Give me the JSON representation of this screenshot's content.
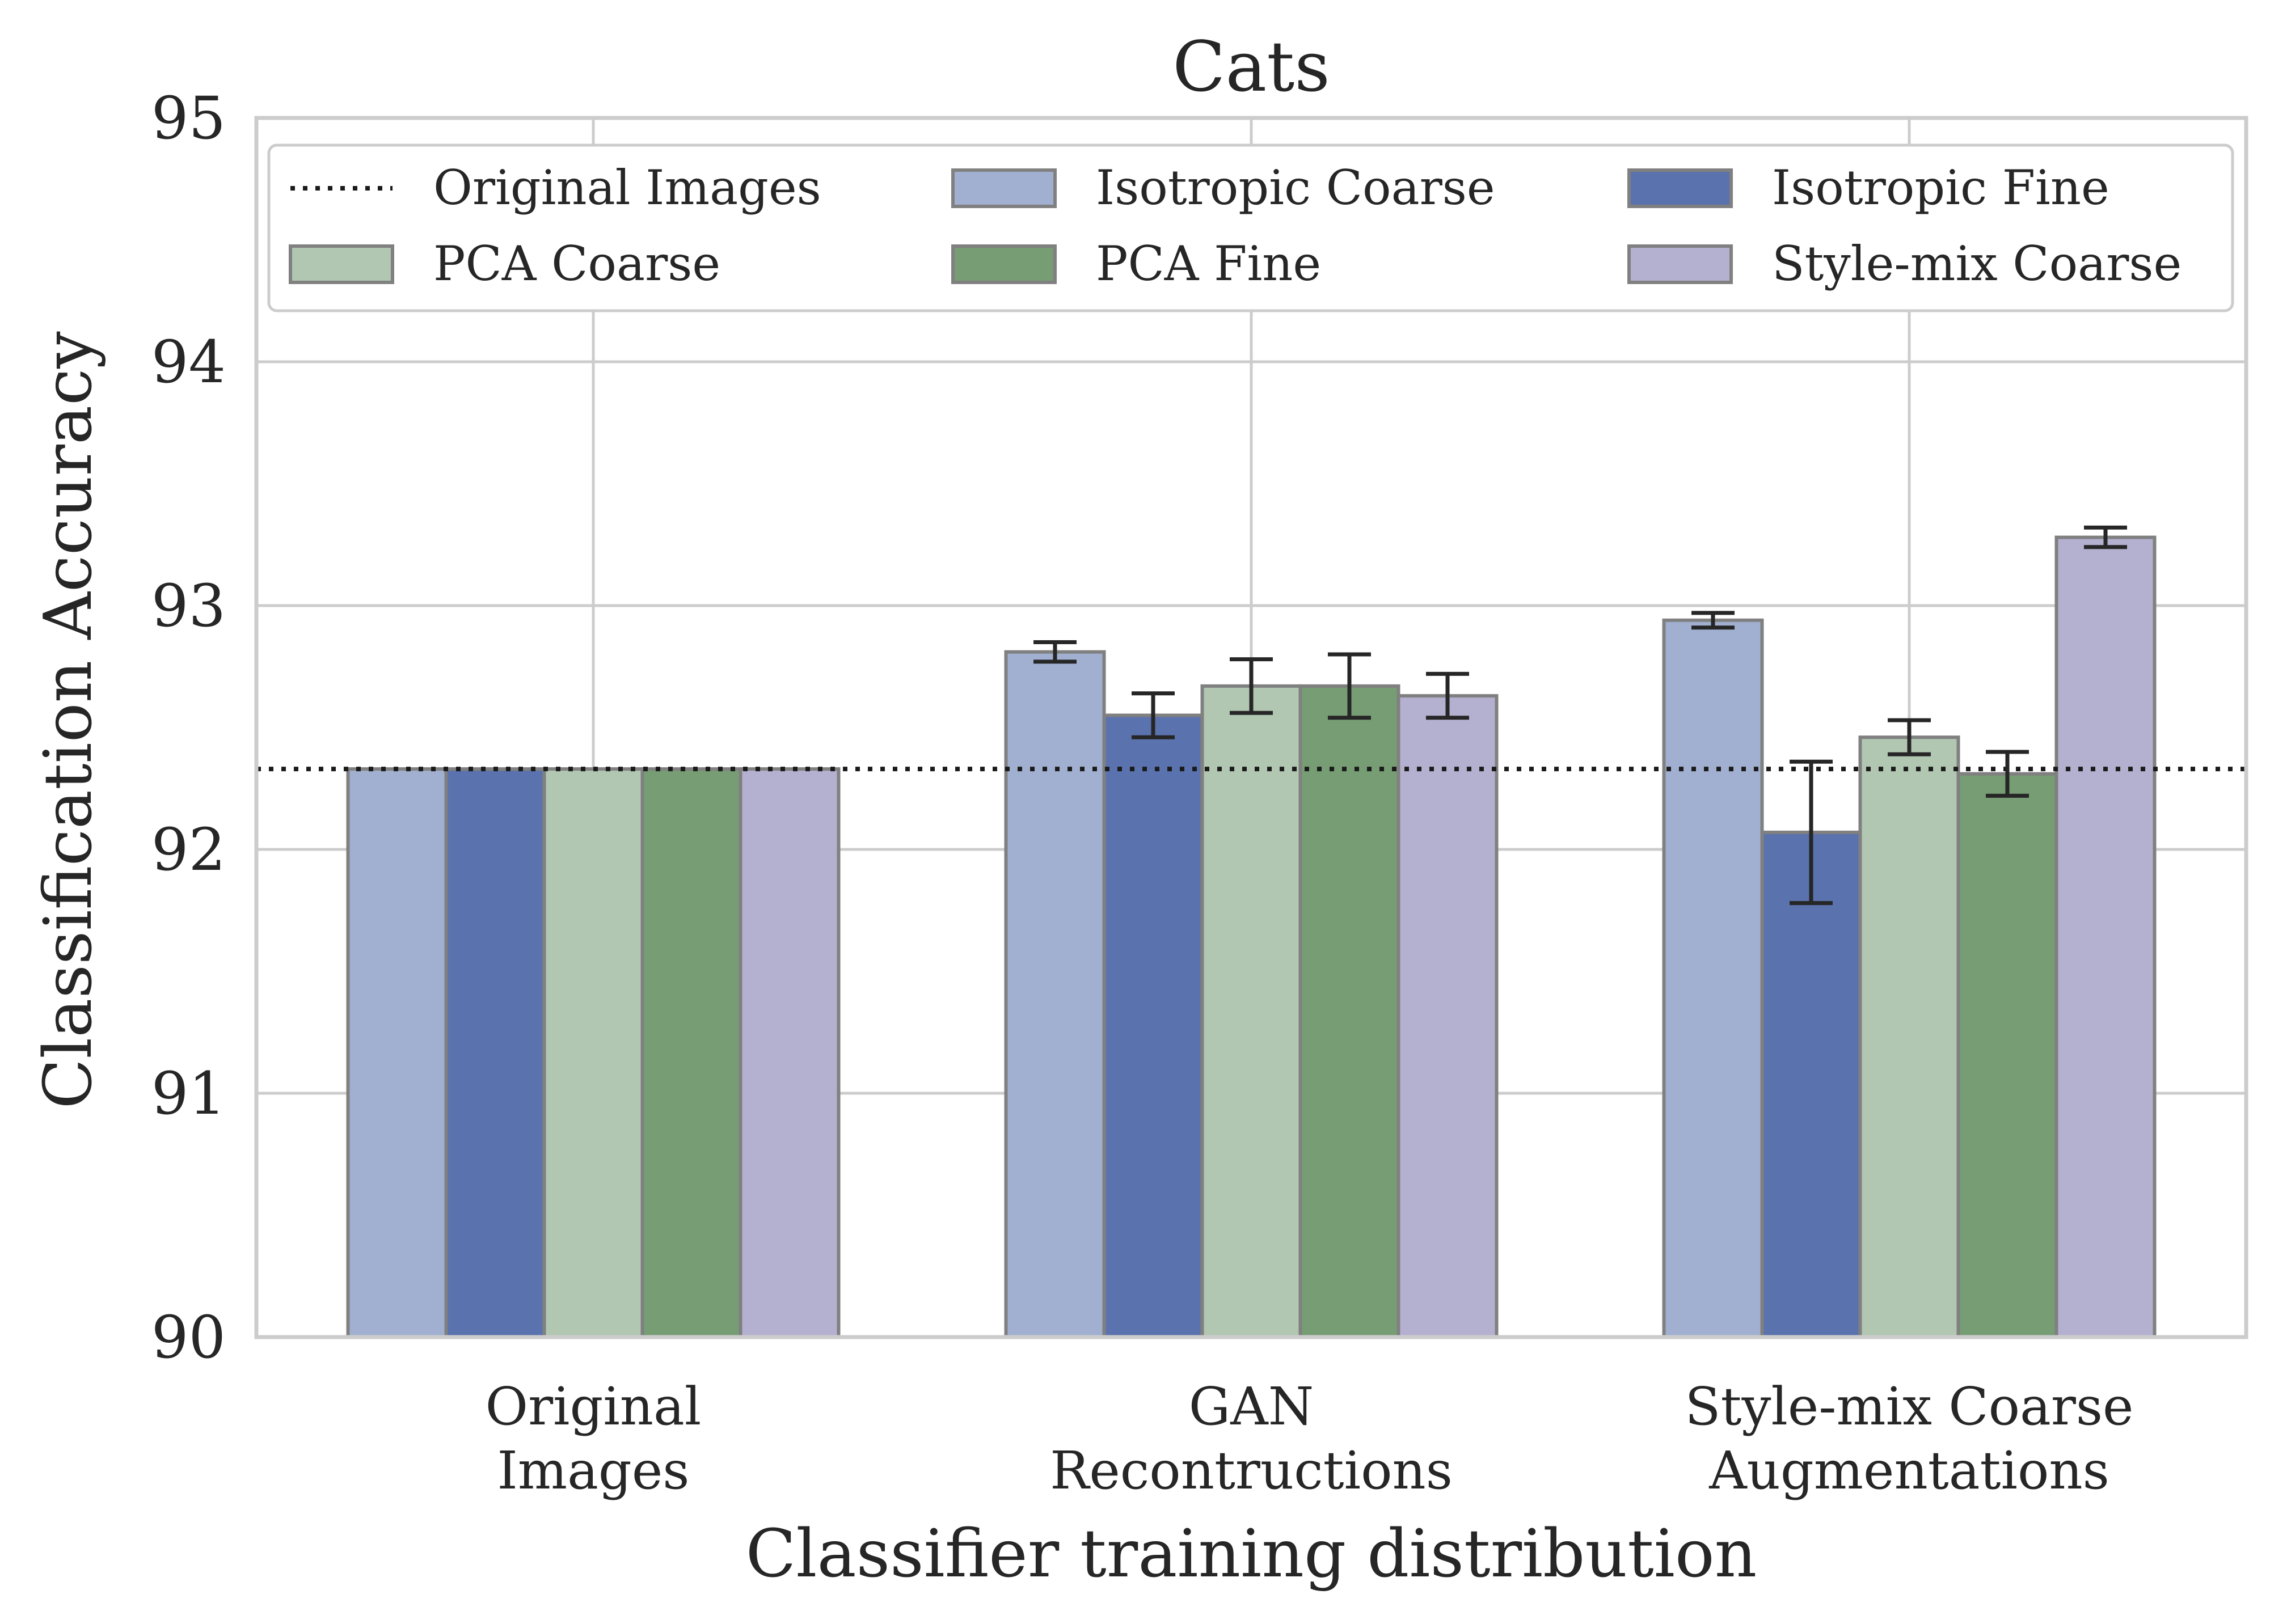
{
  "chart_data": {
    "type": "bar",
    "title": "Cats",
    "xlabel": "Classifier training distribution",
    "ylabel": "Classification Accuracy",
    "ylim": [
      90,
      95
    ],
    "yticks": [
      "90",
      "91",
      "92",
      "93",
      "94",
      "95"
    ],
    "grid": true,
    "legend_position": "top",
    "categories": [
      [
        "Original",
        "Images"
      ],
      [
        "GAN",
        "Recontructions"
      ],
      [
        "Style-mix Coarse",
        "Augmentations"
      ]
    ],
    "reference_line": {
      "name": "Original Images",
      "value": 92.33,
      "style": "dotted",
      "color": "#1a1a1a"
    },
    "series": [
      {
        "name": "Isotropic Coarse",
        "color": "#a1b0d0",
        "values": [
          92.33,
          92.81,
          92.94
        ],
        "errors": [
          0,
          0.04,
          0.03
        ]
      },
      {
        "name": "Isotropic Fine",
        "color": "#5a72ad",
        "values": [
          92.33,
          92.55,
          92.07
        ],
        "errors": [
          0,
          0.09,
          0.29
        ]
      },
      {
        "name": "PCA Coarse",
        "color": "#b1c7b2",
        "values": [
          92.33,
          92.67,
          92.46
        ],
        "errors": [
          0,
          0.11,
          0.07
        ]
      },
      {
        "name": "PCA Fine",
        "color": "#779d74",
        "values": [
          92.33,
          92.67,
          92.31
        ],
        "errors": [
          0,
          0.13,
          0.09
        ]
      },
      {
        "name": "Style-mix Coarse",
        "color": "#b4b0d0",
        "values": [
          92.33,
          92.63,
          93.28
        ],
        "errors": [
          0,
          0.09,
          0.04
        ]
      }
    ]
  }
}
